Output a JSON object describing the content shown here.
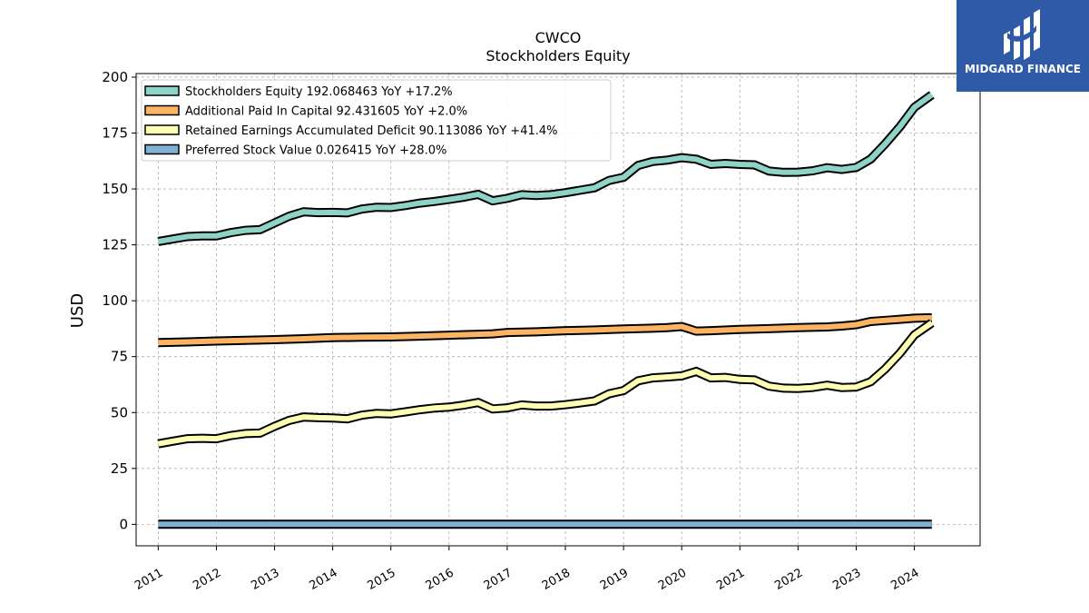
{
  "logo": {
    "text": "MIDGARD FINANCE",
    "icon": "midgard-logo-icon"
  },
  "chart_data": {
    "type": "line",
    "title": "CWCO",
    "subtitle": "Stockholders  Equity",
    "ylabel": "USD",
    "xlabel": "",
    "xlim": [
      2010.62,
      2025.13
    ],
    "ylim": [
      -9.6,
      201.6
    ],
    "yticks": [
      0,
      25,
      50,
      75,
      100,
      125,
      150,
      175,
      200
    ],
    "xticks": [
      2011,
      2012,
      2013,
      2014,
      2015,
      2016,
      2017,
      2018,
      2019,
      2020,
      2021,
      2022,
      2023,
      2024
    ],
    "grid": true,
    "legend_position": "top-left",
    "series": [
      {
        "name": "Stockholders Equity  192.068463 YoY +17.2%",
        "color": "#8dd3c7",
        "x": [
          2011.0,
          2011.25,
          2011.5,
          2011.75,
          2012.0,
          2012.25,
          2012.5,
          2012.75,
          2013.0,
          2013.25,
          2013.5,
          2013.75,
          2014.0,
          2014.25,
          2014.5,
          2014.75,
          2015.0,
          2015.25,
          2015.5,
          2015.75,
          2016.0,
          2016.25,
          2016.5,
          2016.75,
          2017.0,
          2017.25,
          2017.5,
          2017.75,
          2018.0,
          2018.25,
          2018.5,
          2018.75,
          2019.0,
          2019.25,
          2019.5,
          2019.75,
          2020.0,
          2020.25,
          2020.5,
          2020.75,
          2021.0,
          2021.25,
          2021.5,
          2021.75,
          2022.0,
          2022.25,
          2022.5,
          2022.75,
          2023.0,
          2023.25,
          2023.5,
          2023.75,
          2024.0,
          2024.3
        ],
        "values": [
          126.5,
          127.6,
          128.7,
          129.0,
          129.0,
          130.5,
          131.5,
          131.8,
          134.8,
          137.8,
          139.8,
          139.4,
          139.5,
          139.3,
          141.0,
          141.8,
          141.7,
          142.6,
          143.7,
          144.4,
          145.3,
          146.3,
          147.6,
          144.7,
          145.8,
          147.4,
          147.1,
          147.4,
          148.3,
          149.4,
          150.5,
          153.8,
          155.2,
          160.5,
          162.3,
          162.9,
          164.0,
          163.3,
          161.0,
          161.4,
          161.0,
          160.8,
          158.0,
          157.4,
          157.5,
          158.1,
          159.5,
          158.7,
          159.6,
          163.4,
          170.2,
          177.8,
          186.5,
          192.1
        ]
      },
      {
        "name": "Additional Paid In Capital  92.431605 YoY +2.0%",
        "color": "#fdb462",
        "x": [
          2011.0,
          2011.5,
          2012.0,
          2012.5,
          2013.0,
          2013.5,
          2014.0,
          2014.5,
          2015.0,
          2015.5,
          2016.0,
          2016.5,
          2016.75,
          2017.0,
          2017.5,
          2018.0,
          2018.5,
          2019.0,
          2019.5,
          2019.75,
          2020.0,
          2020.25,
          2020.5,
          2021.0,
          2021.5,
          2022.0,
          2022.5,
          2022.75,
          2023.0,
          2023.25,
          2023.5,
          2023.75,
          2024.0,
          2024.3
        ],
        "values": [
          81.3,
          81.6,
          82.0,
          82.3,
          82.6,
          83.0,
          83.5,
          83.7,
          83.8,
          84.2,
          84.6,
          85.0,
          85.2,
          85.8,
          86.1,
          86.6,
          86.9,
          87.4,
          87.7,
          88.0,
          88.5,
          86.4,
          86.6,
          87.2,
          87.5,
          88.0,
          88.3,
          88.7,
          89.3,
          90.7,
          91.2,
          91.7,
          92.2,
          92.4
        ]
      },
      {
        "name": "Retained Earnings Accumulated Deficit  90.113086 YoY +41.4%",
        "color": "#ffffb3",
        "x": [
          2011.0,
          2011.25,
          2011.5,
          2011.75,
          2012.0,
          2012.25,
          2012.5,
          2012.75,
          2013.0,
          2013.25,
          2013.5,
          2013.75,
          2014.0,
          2014.25,
          2014.5,
          2014.75,
          2015.0,
          2015.25,
          2015.5,
          2015.75,
          2016.0,
          2016.25,
          2016.5,
          2016.75,
          2017.0,
          2017.25,
          2017.5,
          2017.75,
          2018.0,
          2018.25,
          2018.5,
          2018.75,
          2019.0,
          2019.25,
          2019.5,
          2019.75,
          2020.0,
          2020.25,
          2020.5,
          2020.75,
          2021.0,
          2021.25,
          2021.5,
          2021.75,
          2022.0,
          2022.25,
          2022.5,
          2022.75,
          2023.0,
          2023.25,
          2023.5,
          2023.75,
          2024.0,
          2024.3
        ],
        "values": [
          36.0,
          37.2,
          38.3,
          38.5,
          38.3,
          39.7,
          40.6,
          40.8,
          43.8,
          46.5,
          48.0,
          47.7,
          47.6,
          47.2,
          48.8,
          49.6,
          49.4,
          50.3,
          51.3,
          52.0,
          52.4,
          53.3,
          54.5,
          51.6,
          52.1,
          53.4,
          52.9,
          52.9,
          53.5,
          54.3,
          55.2,
          58.4,
          59.8,
          64.2,
          65.5,
          65.9,
          66.4,
          68.4,
          65.5,
          65.7,
          64.8,
          64.6,
          61.8,
          60.9,
          60.8,
          61.2,
          62.2,
          61.2,
          61.4,
          63.8,
          69.5,
          76.5,
          84.7,
          90.1
        ]
      },
      {
        "name": "Preferred Stock Value  0.026415 YoY +28.0%",
        "color": "#80b1d3",
        "x": [
          2011.0,
          2024.3
        ],
        "values": [
          0.02,
          0.026
        ]
      }
    ]
  }
}
